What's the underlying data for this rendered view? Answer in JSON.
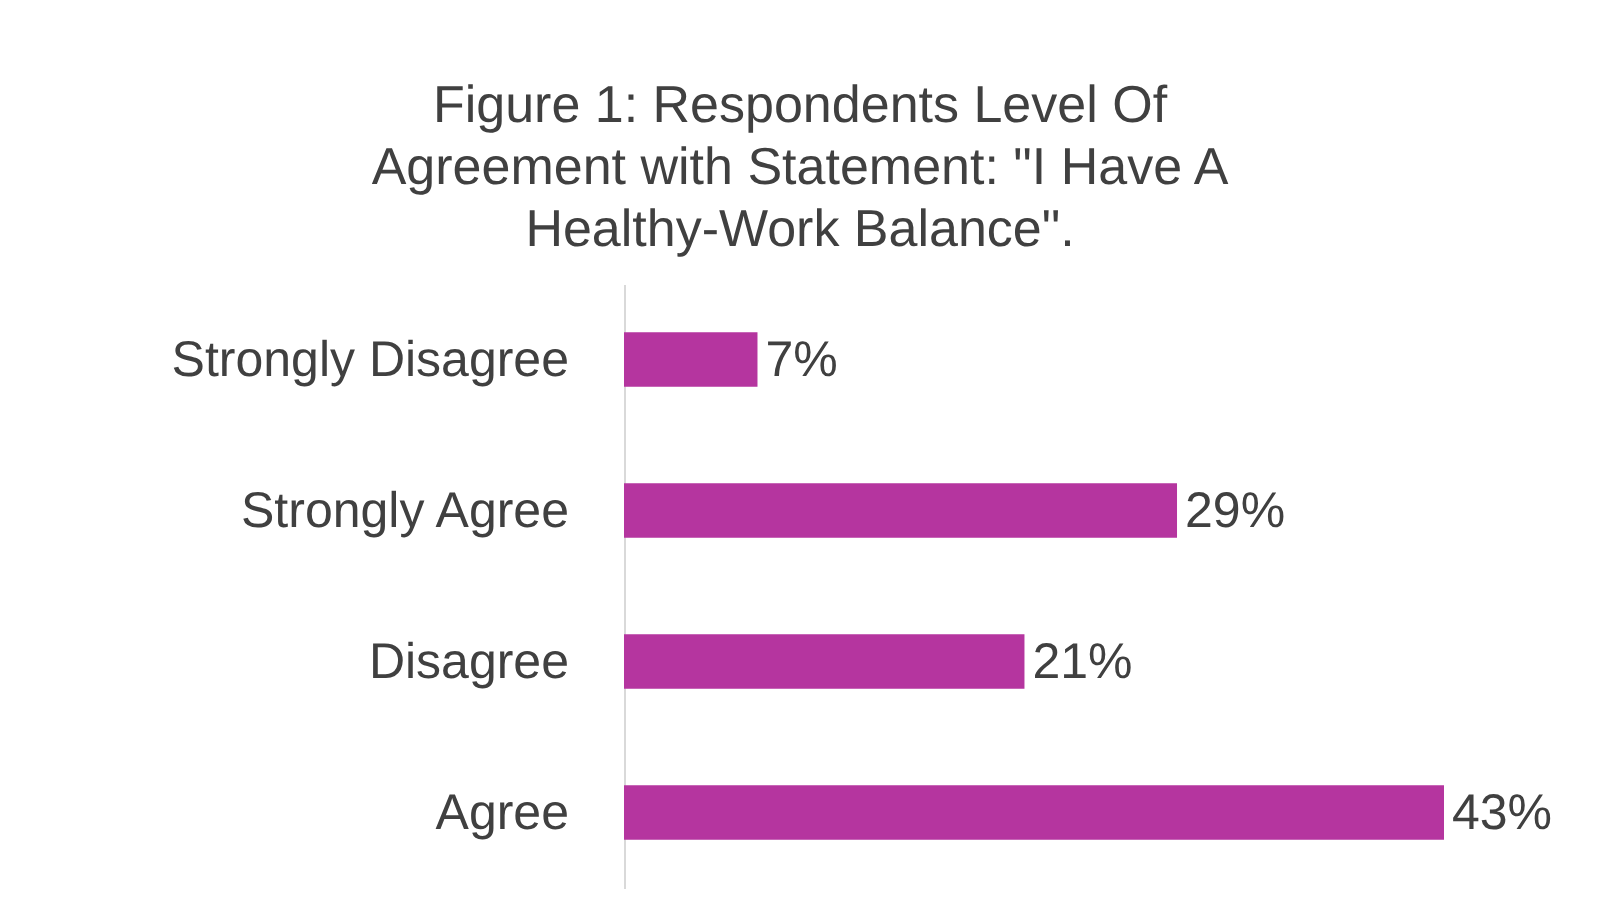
{
  "chart_data": {
    "type": "bar",
    "orientation": "horizontal",
    "title": "Figure 1: Respondents Level Of Agreement with Statement: \"I Have A Healthy-Work Balance\".",
    "categories": [
      "Strongly Disagree",
      "Strongly Agree",
      "Disagree",
      "Agree"
    ],
    "values": [
      7,
      29,
      21,
      43
    ],
    "value_labels": [
      "7%",
      "29%",
      "21%",
      "43%"
    ],
    "color": "#b5359f",
    "tick_labels": "y"
  }
}
